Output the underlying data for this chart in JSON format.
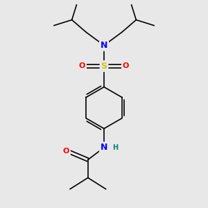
{
  "bg_color": "#e8e8e8",
  "atom_colors": {
    "C": "#000000",
    "N": "#0000ff",
    "O": "#ff0000",
    "S": "#cccc00",
    "H": "#008080"
  },
  "bond_color": "#000000",
  "bond_width": 1.2,
  "figsize": [
    3.0,
    3.0
  ],
  "dpi": 100,
  "xlim": [
    0,
    10
  ],
  "ylim": [
    0,
    11
  ]
}
